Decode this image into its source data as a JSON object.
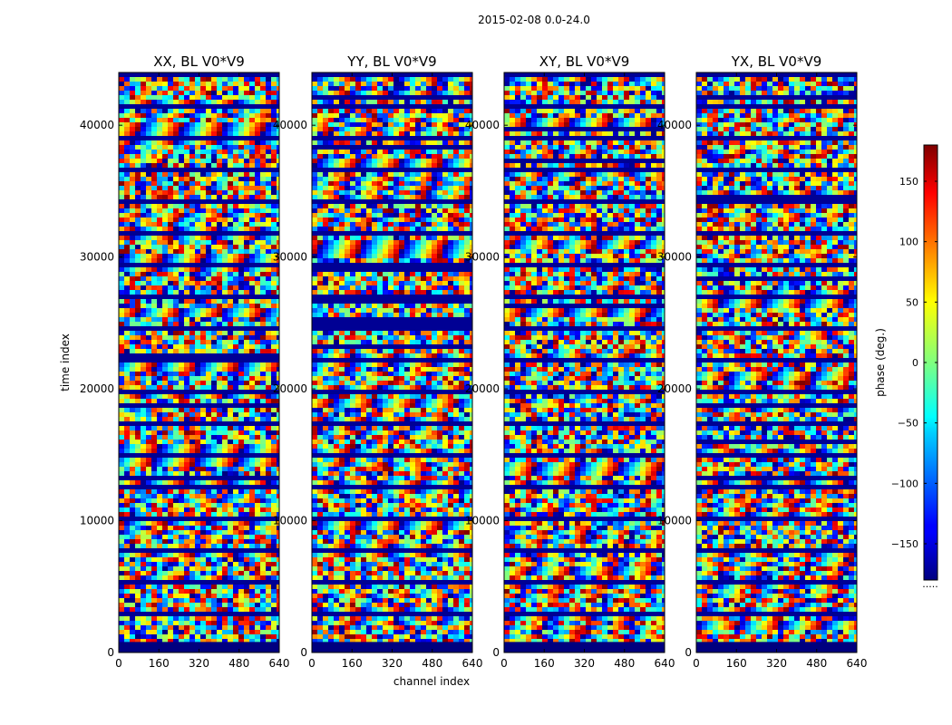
{
  "figure_title": "2015-02-08 0.0-24.0",
  "chart_data": {
    "type": "heatmap",
    "xlabel": "channel index",
    "ylabel": "time index",
    "x_range": [
      0,
      640
    ],
    "y_range": [
      0,
      44000
    ],
    "x_ticks": [
      0,
      160,
      320,
      480,
      640
    ],
    "y_ticks": [
      0,
      10000,
      20000,
      30000,
      40000
    ],
    "panels": [
      {
        "title": "XX, BL V0*V9",
        "polarization": "XX",
        "baseline": "V0*V9"
      },
      {
        "title": "YY, BL V0*V9",
        "polarization": "YY",
        "baseline": "V0*V9"
      },
      {
        "title": "XY, BL V0*V9",
        "polarization": "XY",
        "baseline": "V0*V9"
      },
      {
        "title": "YX, BL V0*V9",
        "polarization": "YX",
        "baseline": "V0*V9"
      }
    ],
    "colorbar": {
      "label": "phase (deg.)",
      "range": [
        -180,
        180
      ],
      "ticks": [
        -150,
        -100,
        -50,
        0,
        50,
        100,
        150
      ],
      "colormap": "jet",
      "under_text": "....."
    }
  }
}
